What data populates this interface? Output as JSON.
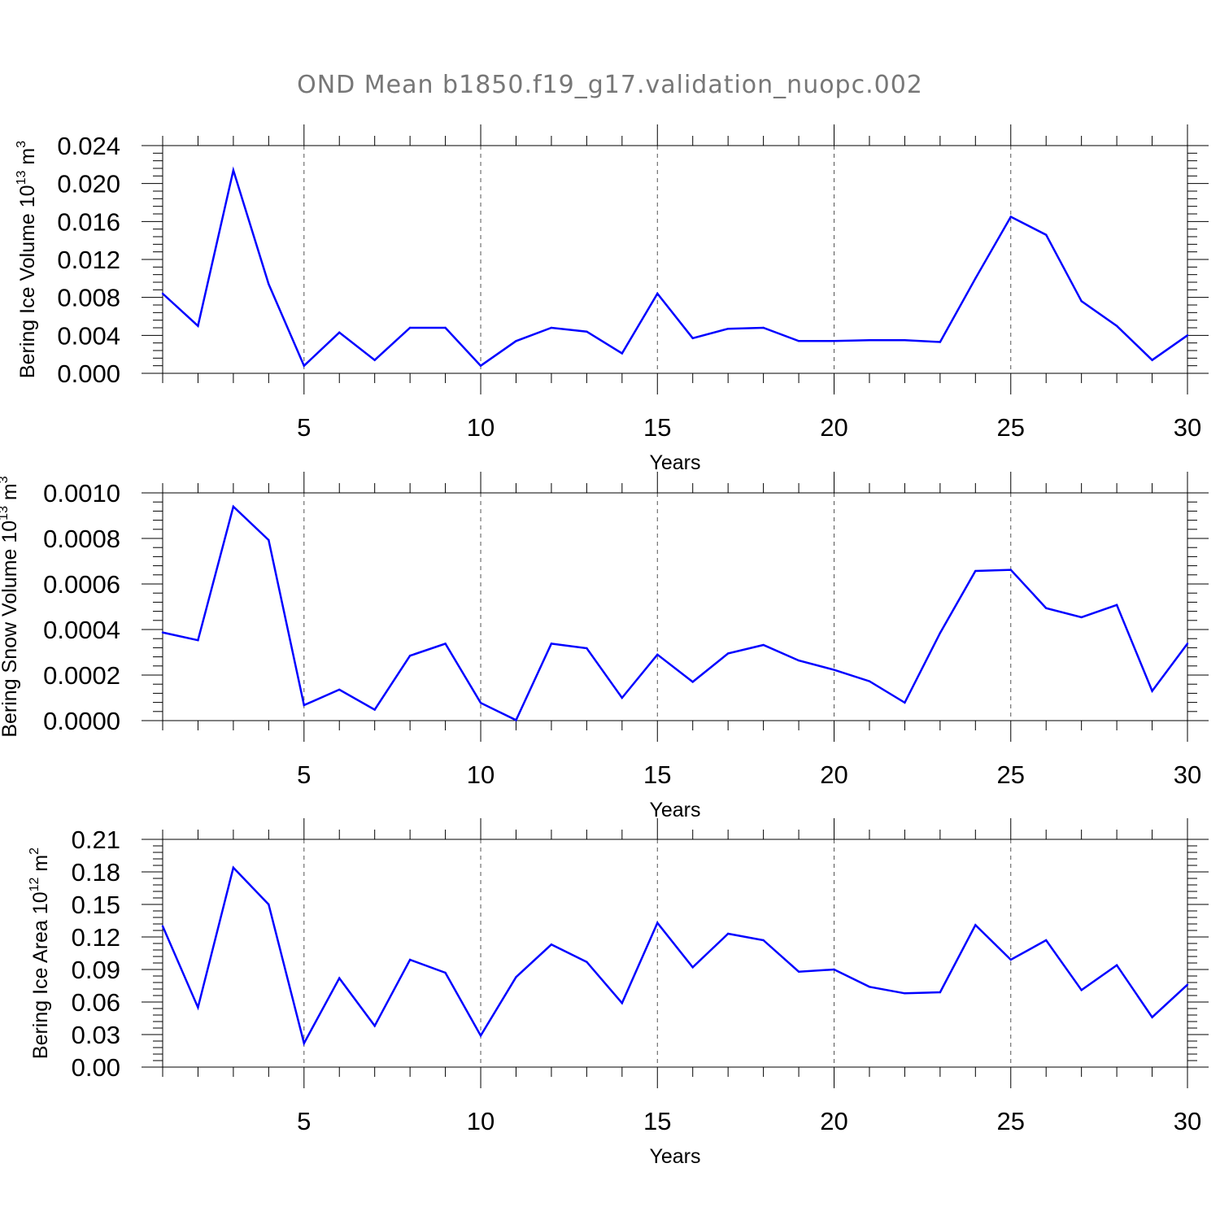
{
  "figure": {
    "title": "OND Mean b1850.f19_g17.validation_nuopc.002",
    "line_color": "#0000ff"
  },
  "chart_data": [
    {
      "type": "line",
      "xlabel": "Years",
      "ylabel": "Bering Ice Volume 10",
      "ylabel_exp": "13",
      "ylabel_unit": " m",
      "ylabel_unit_exp": "3",
      "xlim": [
        1,
        30
      ],
      "ylim": [
        0,
        0.024
      ],
      "xticks": [
        5,
        10,
        15,
        20,
        25,
        30
      ],
      "yticks": [
        0.0,
        0.004,
        0.008,
        0.012,
        0.016,
        0.02,
        0.024
      ],
      "ytick_labels": [
        "0.000",
        "0.004",
        "0.008",
        "0.012",
        "0.016",
        "0.020",
        "0.024"
      ],
      "grid": "dashed vertical at major x ticks",
      "x": [
        1,
        2,
        3,
        4,
        5,
        6,
        7,
        8,
        9,
        10,
        11,
        12,
        13,
        14,
        15,
        16,
        17,
        18,
        19,
        20,
        21,
        22,
        23,
        24,
        25,
        26,
        27,
        28,
        29,
        30
      ],
      "values": [
        0.0084,
        0.005,
        0.0214,
        0.0094,
        0.0008,
        0.0043,
        0.0014,
        0.0048,
        0.0048,
        0.0008,
        0.0034,
        0.0048,
        0.0044,
        0.0021,
        0.0084,
        0.0037,
        0.0047,
        0.0048,
        0.0034,
        0.0034,
        0.0035,
        0.0035,
        0.0033,
        0.01,
        0.0165,
        0.0146,
        0.0076,
        0.005,
        0.0014,
        0.004
      ]
    },
    {
      "type": "line",
      "xlabel": "Years",
      "ylabel": "Bering Snow Volume 10",
      "ylabel_exp": "13",
      "ylabel_unit": " m",
      "ylabel_unit_exp": "3",
      "xlim": [
        1,
        30
      ],
      "ylim": [
        0,
        0.001
      ],
      "xticks": [
        5,
        10,
        15,
        20,
        25,
        30
      ],
      "yticks": [
        0.0,
        0.0002,
        0.0004,
        0.0006,
        0.0008,
        0.001
      ],
      "ytick_labels": [
        "0.0000",
        "0.0002",
        "0.0004",
        "0.0006",
        "0.0008",
        "0.0010"
      ],
      "grid": "dashed vertical at major x ticks",
      "x": [
        1,
        2,
        3,
        4,
        5,
        6,
        7,
        8,
        9,
        10,
        11,
        12,
        13,
        14,
        15,
        16,
        17,
        18,
        19,
        20,
        21,
        22,
        23,
        24,
        25,
        26,
        27,
        28,
        29,
        30
      ],
      "values": [
        0.000387,
        0.000353,
        0.00094,
        0.000793,
        6.8e-05,
        0.000136,
        4.8e-05,
        0.000285,
        0.000338,
        7.8e-05,
        2e-06,
        0.000338,
        0.000318,
        0.0001,
        0.00029,
        0.00017,
        0.000295,
        0.000332,
        0.000264,
        0.000223,
        0.000173,
        7.9e-05,
        0.000385,
        0.000657,
        0.000662,
        0.000494,
        0.000454,
        0.000508,
        0.00013,
        0.000338
      ]
    },
    {
      "type": "line",
      "xlabel": "Years",
      "ylabel": "Bering Ice Area 10",
      "ylabel_exp": "12",
      "ylabel_unit": " m",
      "ylabel_unit_exp": "2",
      "xlim": [
        1,
        30
      ],
      "ylim": [
        0,
        0.21
      ],
      "xticks": [
        5,
        10,
        15,
        20,
        25,
        30
      ],
      "yticks": [
        0.0,
        0.03,
        0.06,
        0.09,
        0.12,
        0.15,
        0.18,
        0.21
      ],
      "ytick_labels": [
        "0.00",
        "0.03",
        "0.06",
        "0.09",
        "0.12",
        "0.15",
        "0.18",
        "0.21"
      ],
      "grid": "dashed vertical at major x ticks",
      "x": [
        1,
        2,
        3,
        4,
        5,
        6,
        7,
        8,
        9,
        10,
        11,
        12,
        13,
        14,
        15,
        16,
        17,
        18,
        19,
        20,
        21,
        22,
        23,
        24,
        25,
        26,
        27,
        28,
        29,
        30
      ],
      "values": [
        0.13,
        0.055,
        0.184,
        0.15,
        0.022,
        0.082,
        0.038,
        0.099,
        0.087,
        0.029,
        0.083,
        0.113,
        0.097,
        0.059,
        0.133,
        0.092,
        0.123,
        0.117,
        0.088,
        0.09,
        0.074,
        0.068,
        0.069,
        0.131,
        0.099,
        0.117,
        0.071,
        0.094,
        0.046,
        0.076
      ]
    }
  ]
}
